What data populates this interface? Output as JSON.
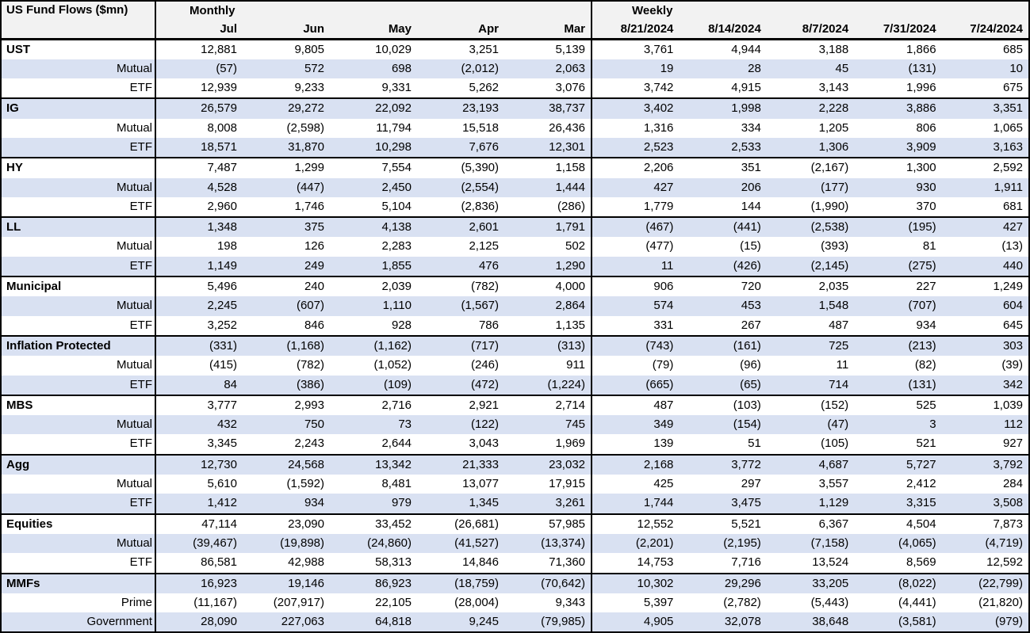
{
  "title": "US Fund Flows ($mn)",
  "group_headers": {
    "monthly": "Monthly",
    "weekly": "Weekly"
  },
  "columns": {
    "monthly": [
      "Jul",
      "Jun",
      "May",
      "Apr",
      "Mar"
    ],
    "weekly": [
      "8/21/2024",
      "8/14/2024",
      "8/7/2024",
      "7/31/2024",
      "7/24/2024"
    ]
  },
  "colors": {
    "alt_row": "#D9E1F2",
    "header_bg": "#F2F2F2",
    "border": "#000000",
    "text": "#000000"
  },
  "sections": [
    {
      "name": "UST",
      "rows": [
        {
          "label": "UST",
          "values": [
            "12,881",
            "9,805",
            "10,029",
            "3,251",
            "5,139",
            "3,761",
            "4,944",
            "3,188",
            "1,866",
            "685"
          ]
        },
        {
          "label": "Mutual",
          "values": [
            "(57)",
            "572",
            "698",
            "(2,012)",
            "2,063",
            "19",
            "28",
            "45",
            "(131)",
            "10"
          ]
        },
        {
          "label": "ETF",
          "values": [
            "12,939",
            "9,233",
            "9,331",
            "5,262",
            "3,076",
            "3,742",
            "4,915",
            "3,143",
            "1,996",
            "675"
          ]
        }
      ]
    },
    {
      "name": "IG",
      "rows": [
        {
          "label": "IG",
          "values": [
            "26,579",
            "29,272",
            "22,092",
            "23,193",
            "38,737",
            "3,402",
            "1,998",
            "2,228",
            "3,886",
            "3,351"
          ]
        },
        {
          "label": "Mutual",
          "values": [
            "8,008",
            "(2,598)",
            "11,794",
            "15,518",
            "26,436",
            "1,316",
            "334",
            "1,205",
            "806",
            "1,065"
          ]
        },
        {
          "label": "ETF",
          "values": [
            "18,571",
            "31,870",
            "10,298",
            "7,676",
            "12,301",
            "2,523",
            "2,533",
            "1,306",
            "3,909",
            "3,163"
          ]
        }
      ]
    },
    {
      "name": "HY",
      "rows": [
        {
          "label": "HY",
          "values": [
            "7,487",
            "1,299",
            "7,554",
            "(5,390)",
            "1,158",
            "2,206",
            "351",
            "(2,167)",
            "1,300",
            "2,592"
          ]
        },
        {
          "label": "Mutual",
          "values": [
            "4,528",
            "(447)",
            "2,450",
            "(2,554)",
            "1,444",
            "427",
            "206",
            "(177)",
            "930",
            "1,911"
          ]
        },
        {
          "label": "ETF",
          "values": [
            "2,960",
            "1,746",
            "5,104",
            "(2,836)",
            "(286)",
            "1,779",
            "144",
            "(1,990)",
            "370",
            "681"
          ]
        }
      ]
    },
    {
      "name": "LL",
      "rows": [
        {
          "label": "LL",
          "values": [
            "1,348",
            "375",
            "4,138",
            "2,601",
            "1,791",
            "(467)",
            "(441)",
            "(2,538)",
            "(195)",
            "427"
          ]
        },
        {
          "label": "Mutual",
          "values": [
            "198",
            "126",
            "2,283",
            "2,125",
            "502",
            "(477)",
            "(15)",
            "(393)",
            "81",
            "(13)"
          ]
        },
        {
          "label": "ETF",
          "values": [
            "1,149",
            "249",
            "1,855",
            "476",
            "1,290",
            "11",
            "(426)",
            "(2,145)",
            "(275)",
            "440"
          ]
        }
      ]
    },
    {
      "name": "Municipal",
      "rows": [
        {
          "label": "Municipal",
          "values": [
            "5,496",
            "240",
            "2,039",
            "(782)",
            "4,000",
            "906",
            "720",
            "2,035",
            "227",
            "1,249"
          ]
        },
        {
          "label": "Mutual",
          "values": [
            "2,245",
            "(607)",
            "1,110",
            "(1,567)",
            "2,864",
            "574",
            "453",
            "1,548",
            "(707)",
            "604"
          ]
        },
        {
          "label": "ETF",
          "values": [
            "3,252",
            "846",
            "928",
            "786",
            "1,135",
            "331",
            "267",
            "487",
            "934",
            "645"
          ]
        }
      ]
    },
    {
      "name": "Inflation Protected",
      "rows": [
        {
          "label": "Inflation Protected",
          "values": [
            "(331)",
            "(1,168)",
            "(1,162)",
            "(717)",
            "(313)",
            "(743)",
            "(161)",
            "725",
            "(213)",
            "303"
          ]
        },
        {
          "label": "Mutual",
          "values": [
            "(415)",
            "(782)",
            "(1,052)",
            "(246)",
            "911",
            "(79)",
            "(96)",
            "11",
            "(82)",
            "(39)"
          ]
        },
        {
          "label": "ETF",
          "values": [
            "84",
            "(386)",
            "(109)",
            "(472)",
            "(1,224)",
            "(665)",
            "(65)",
            "714",
            "(131)",
            "342"
          ]
        }
      ]
    },
    {
      "name": "MBS",
      "rows": [
        {
          "label": "MBS",
          "values": [
            "3,777",
            "2,993",
            "2,716",
            "2,921",
            "2,714",
            "487",
            "(103)",
            "(152)",
            "525",
            "1,039"
          ]
        },
        {
          "label": "Mutual",
          "values": [
            "432",
            "750",
            "73",
            "(122)",
            "745",
            "349",
            "(154)",
            "(47)",
            "3",
            "112"
          ]
        },
        {
          "label": "ETF",
          "values": [
            "3,345",
            "2,243",
            "2,644",
            "3,043",
            "1,969",
            "139",
            "51",
            "(105)",
            "521",
            "927"
          ]
        }
      ]
    },
    {
      "name": "Agg",
      "rows": [
        {
          "label": "Agg",
          "values": [
            "12,730",
            "24,568",
            "13,342",
            "21,333",
            "23,032",
            "2,168",
            "3,772",
            "4,687",
            "5,727",
            "3,792"
          ]
        },
        {
          "label": "Mutual",
          "values": [
            "5,610",
            "(1,592)",
            "8,481",
            "13,077",
            "17,915",
            "425",
            "297",
            "3,557",
            "2,412",
            "284"
          ]
        },
        {
          "label": "ETF",
          "values": [
            "1,412",
            "934",
            "979",
            "1,345",
            "3,261",
            "1,744",
            "3,475",
            "1,129",
            "3,315",
            "3,508"
          ]
        }
      ]
    },
    {
      "name": "Equities",
      "rows": [
        {
          "label": "Equities",
          "values": [
            "47,114",
            "23,090",
            "33,452",
            "(26,681)",
            "57,985",
            "12,552",
            "5,521",
            "6,367",
            "4,504",
            "7,873"
          ]
        },
        {
          "label": "Mutual",
          "values": [
            "(39,467)",
            "(19,898)",
            "(24,860)",
            "(41,527)",
            "(13,374)",
            "(2,201)",
            "(2,195)",
            "(7,158)",
            "(4,065)",
            "(4,719)"
          ]
        },
        {
          "label": "ETF",
          "values": [
            "86,581",
            "42,988",
            "58,313",
            "14,846",
            "71,360",
            "14,753",
            "7,716",
            "13,524",
            "8,569",
            "12,592"
          ]
        }
      ]
    },
    {
      "name": "MMFs",
      "rows": [
        {
          "label": "MMFs",
          "values": [
            "16,923",
            "19,146",
            "86,923",
            "(18,759)",
            "(70,642)",
            "10,302",
            "29,296",
            "33,205",
            "(8,022)",
            "(22,799)"
          ]
        },
        {
          "label": "Prime",
          "values": [
            "(11,167)",
            "(207,917)",
            "22,105",
            "(28,004)",
            "9,343",
            "5,397",
            "(2,782)",
            "(5,443)",
            "(4,441)",
            "(21,820)"
          ]
        },
        {
          "label": "Government",
          "values": [
            "28,090",
            "227,063",
            "64,818",
            "9,245",
            "(79,985)",
            "4,905",
            "32,078",
            "38,648",
            "(3,581)",
            "(979)"
          ]
        }
      ]
    }
  ]
}
